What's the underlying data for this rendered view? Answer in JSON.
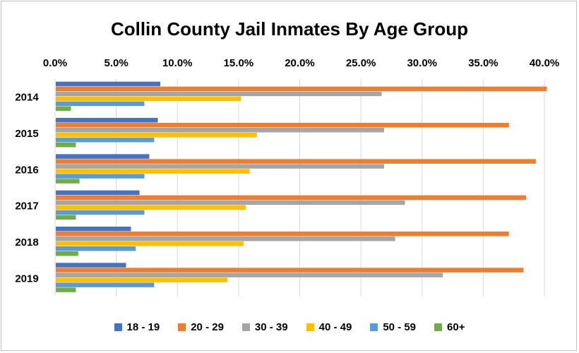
{
  "chart_data": {
    "type": "bar",
    "orientation": "horizontal",
    "title": "Collin County Jail Inmates By Age Group",
    "xlabel": "",
    "ylabel": "",
    "xlim": [
      0,
      40
    ],
    "x_tick_labels": [
      "0.0%",
      "5.0%",
      "10.0%",
      "15.0%",
      "20.0%",
      "25.0%",
      "30.0%",
      "35.0%",
      "40.0%"
    ],
    "x_axis_position": "top",
    "grid": "vertical",
    "legend_position": "bottom",
    "categories": [
      "2014",
      "2015",
      "2016",
      "2017",
      "2018",
      "2019"
    ],
    "series": [
      {
        "name": "18 - 19",
        "color": "#4472C4",
        "values": [
          8.6,
          8.4,
          7.7,
          6.9,
          6.2,
          5.8
        ]
      },
      {
        "name": "20 - 29",
        "color": "#ED7D31",
        "values": [
          40.2,
          37.1,
          39.3,
          38.5,
          37.1,
          38.3
        ]
      },
      {
        "name": "30 - 39",
        "color": "#A5A5A5",
        "values": [
          26.7,
          26.9,
          26.9,
          28.6,
          27.8,
          31.7
        ]
      },
      {
        "name": "40 - 49",
        "color": "#FFC000",
        "values": [
          15.2,
          16.5,
          15.9,
          15.6,
          15.4,
          14.1
        ]
      },
      {
        "name": "50 - 59",
        "color": "#5B9BD5",
        "values": [
          7.3,
          8.1,
          7.3,
          7.3,
          6.6,
          8.1
        ]
      },
      {
        "name": "60+",
        "color": "#70AD47",
        "values": [
          1.3,
          1.7,
          2.0,
          1.7,
          1.9,
          1.7
        ]
      }
    ]
  }
}
